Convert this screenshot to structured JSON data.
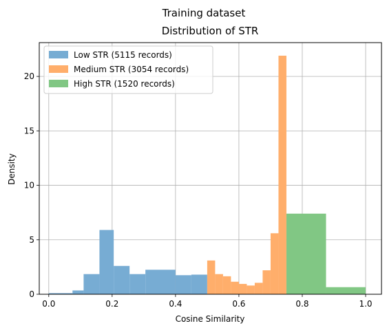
{
  "suptitle": "Training dataset",
  "chart_data": {
    "type": "bar",
    "title": "Distribution of STR",
    "xlabel": "Cosine Similarity",
    "ylabel": "Density",
    "xlim": [
      -0.03,
      1.05
    ],
    "ylim": [
      0,
      23.1
    ],
    "xticks": [
      0.0,
      0.2,
      0.4,
      0.6,
      0.8,
      1.0
    ],
    "xtick_labels": [
      "0.0",
      "0.2",
      "0.4",
      "0.6",
      "0.8",
      "1.0"
    ],
    "yticks": [
      0,
      5,
      10,
      15,
      20
    ],
    "ytick_labels": [
      "0",
      "5",
      "10",
      "15",
      "20"
    ],
    "grid": true,
    "legend_position": "upper-left",
    "series": [
      {
        "name": "Low STR (5115 records)",
        "color": "#77acd3",
        "bins": [
          {
            "x0": 0.0,
            "x1": 0.075,
            "y": 0.1
          },
          {
            "x0": 0.075,
            "x1": 0.11,
            "y": 0.35
          },
          {
            "x0": 0.11,
            "x1": 0.16,
            "y": 1.85
          },
          {
            "x0": 0.16,
            "x1": 0.205,
            "y": 5.9
          },
          {
            "x0": 0.205,
            "x1": 0.255,
            "y": 2.6
          },
          {
            "x0": 0.255,
            "x1": 0.305,
            "y": 1.85
          },
          {
            "x0": 0.305,
            "x1": 0.4,
            "y": 2.25
          },
          {
            "x0": 0.4,
            "x1": 0.45,
            "y": 1.75
          },
          {
            "x0": 0.45,
            "x1": 0.5,
            "y": 1.8
          }
        ]
      },
      {
        "name": "Medium STR (3054 records)",
        "color": "#ffae6b",
        "bins": [
          {
            "x0": 0.5,
            "x1": 0.525,
            "y": 3.1
          },
          {
            "x0": 0.525,
            "x1": 0.55,
            "y": 1.85
          },
          {
            "x0": 0.55,
            "x1": 0.575,
            "y": 1.65
          },
          {
            "x0": 0.575,
            "x1": 0.6,
            "y": 1.15
          },
          {
            "x0": 0.6,
            "x1": 0.625,
            "y": 0.95
          },
          {
            "x0": 0.625,
            "x1": 0.65,
            "y": 0.8
          },
          {
            "x0": 0.65,
            "x1": 0.675,
            "y": 1.05
          },
          {
            "x0": 0.675,
            "x1": 0.7,
            "y": 2.2
          },
          {
            "x0": 0.7,
            "x1": 0.725,
            "y": 5.6
          },
          {
            "x0": 0.725,
            "x1": 0.75,
            "y": 21.9
          }
        ]
      },
      {
        "name": "High STR (1520 records)",
        "color": "#81c784",
        "bins": [
          {
            "x0": 0.75,
            "x1": 0.875,
            "y": 7.4
          },
          {
            "x0": 0.875,
            "x1": 1.0,
            "y": 0.65
          }
        ]
      }
    ]
  }
}
